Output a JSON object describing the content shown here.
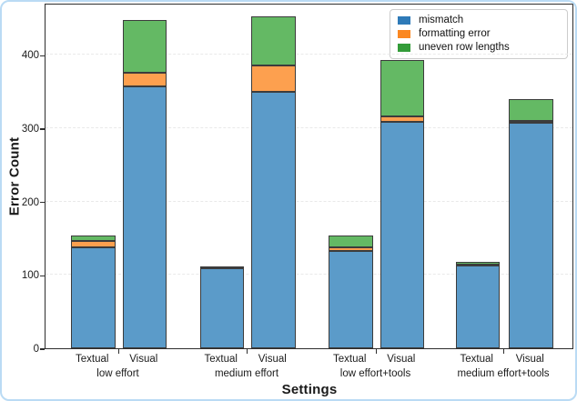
{
  "figure": {
    "legend": [
      {
        "label": "mismatch",
        "swatch_color": "#2e7ab8"
      },
      {
        "label": "formatting error",
        "swatch_color": "#fb8821"
      },
      {
        "label": "uneven row lengths",
        "swatch_color": "#339c39"
      }
    ],
    "border_color": "#badbf4"
  },
  "chart_data": {
    "type": "bar",
    "stacked": true,
    "title": "",
    "xlabel": "Settings",
    "ylabel": "Error Count",
    "groups": [
      "low effort",
      "medium effort",
      "low effort+tools",
      "medium effort+tools"
    ],
    "bar_labels": [
      "Textual",
      "Visual"
    ],
    "categories": [
      "Textual low effort",
      "Visual low effort",
      "Textual medium effort",
      "Visual medium effort",
      "Textual low effort+tools",
      "Visual low effort+tools",
      "Textual medium effort+tools",
      "Visual medium effort+tools"
    ],
    "series": [
      {
        "name": "mismatch",
        "color": "#5b9bc9",
        "values": [
          137,
          357,
          109,
          350,
          133,
          309,
          113,
          308
        ]
      },
      {
        "name": "formatting error",
        "color": "#fda04f",
        "values": [
          9,
          18,
          0,
          35,
          4,
          7,
          1,
          2
        ]
      },
      {
        "name": "uneven row lengths",
        "color": "#64b964",
        "values": [
          8,
          73,
          2,
          68,
          17,
          77,
          4,
          30
        ]
      }
    ],
    "totals": [
      154,
      448,
      111,
      453,
      154,
      393,
      118,
      340
    ],
    "ylim": [
      0,
      471
    ],
    "yticks": [
      0,
      100,
      200,
      300,
      400
    ],
    "grid": true,
    "legend_position": "upper right"
  }
}
